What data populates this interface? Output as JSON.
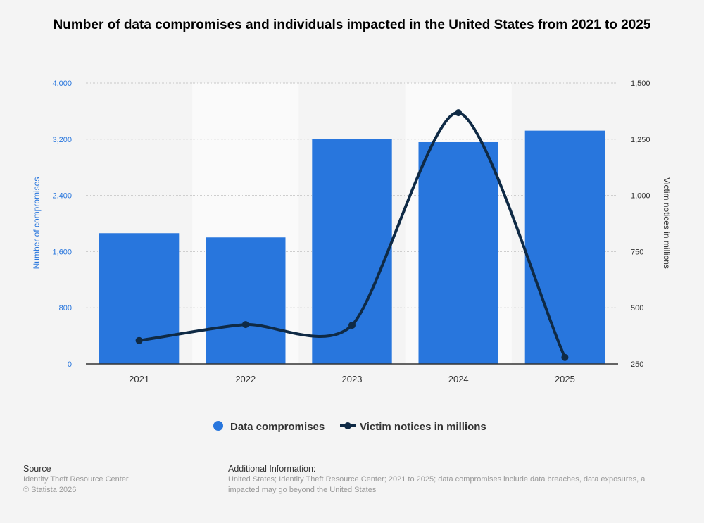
{
  "chart_data": {
    "type": "bar",
    "title": "Number of data compromises and individuals impacted in the United States from 2021 to 2025",
    "categories": [
      "2021",
      "2022",
      "2023",
      "2024",
      "2025"
    ],
    "series": [
      {
        "name": "Data compromises",
        "type": "bar",
        "axis": "left",
        "color": "#2876dd",
        "values": [
          1862,
          1802,
          3205,
          3158,
          3322
        ]
      },
      {
        "name": "Victim notices in millions",
        "type": "line",
        "axis": "right",
        "color": "#0f2a45",
        "values": [
          354,
          425,
          422,
          1368,
          279
        ]
      }
    ],
    "ylabel": "Number of compromises",
    "ylim": [
      0,
      4000
    ],
    "yticks": [
      "0",
      "800",
      "1,600",
      "2,400",
      "3,200",
      "4,000"
    ],
    "y2label": "Victim notices in millions",
    "y2lim": [
      250,
      1500
    ],
    "y2ticks": [
      "250",
      "500",
      "750",
      "1,000",
      "1,250",
      "1,500"
    ],
    "grid": true,
    "legend": "bottom-center"
  },
  "footer": {
    "source_heading": "Source",
    "source_lines": [
      "Identity Theft Resource Center",
      "© Statista 2026"
    ],
    "info_heading": "Additional Information:",
    "info_lines": [
      "United States; Identity Theft Resource Center; 2021 to 2025; data compromises include data breaches, data exposures, a",
      "impacted may go beyond the United States"
    ]
  }
}
